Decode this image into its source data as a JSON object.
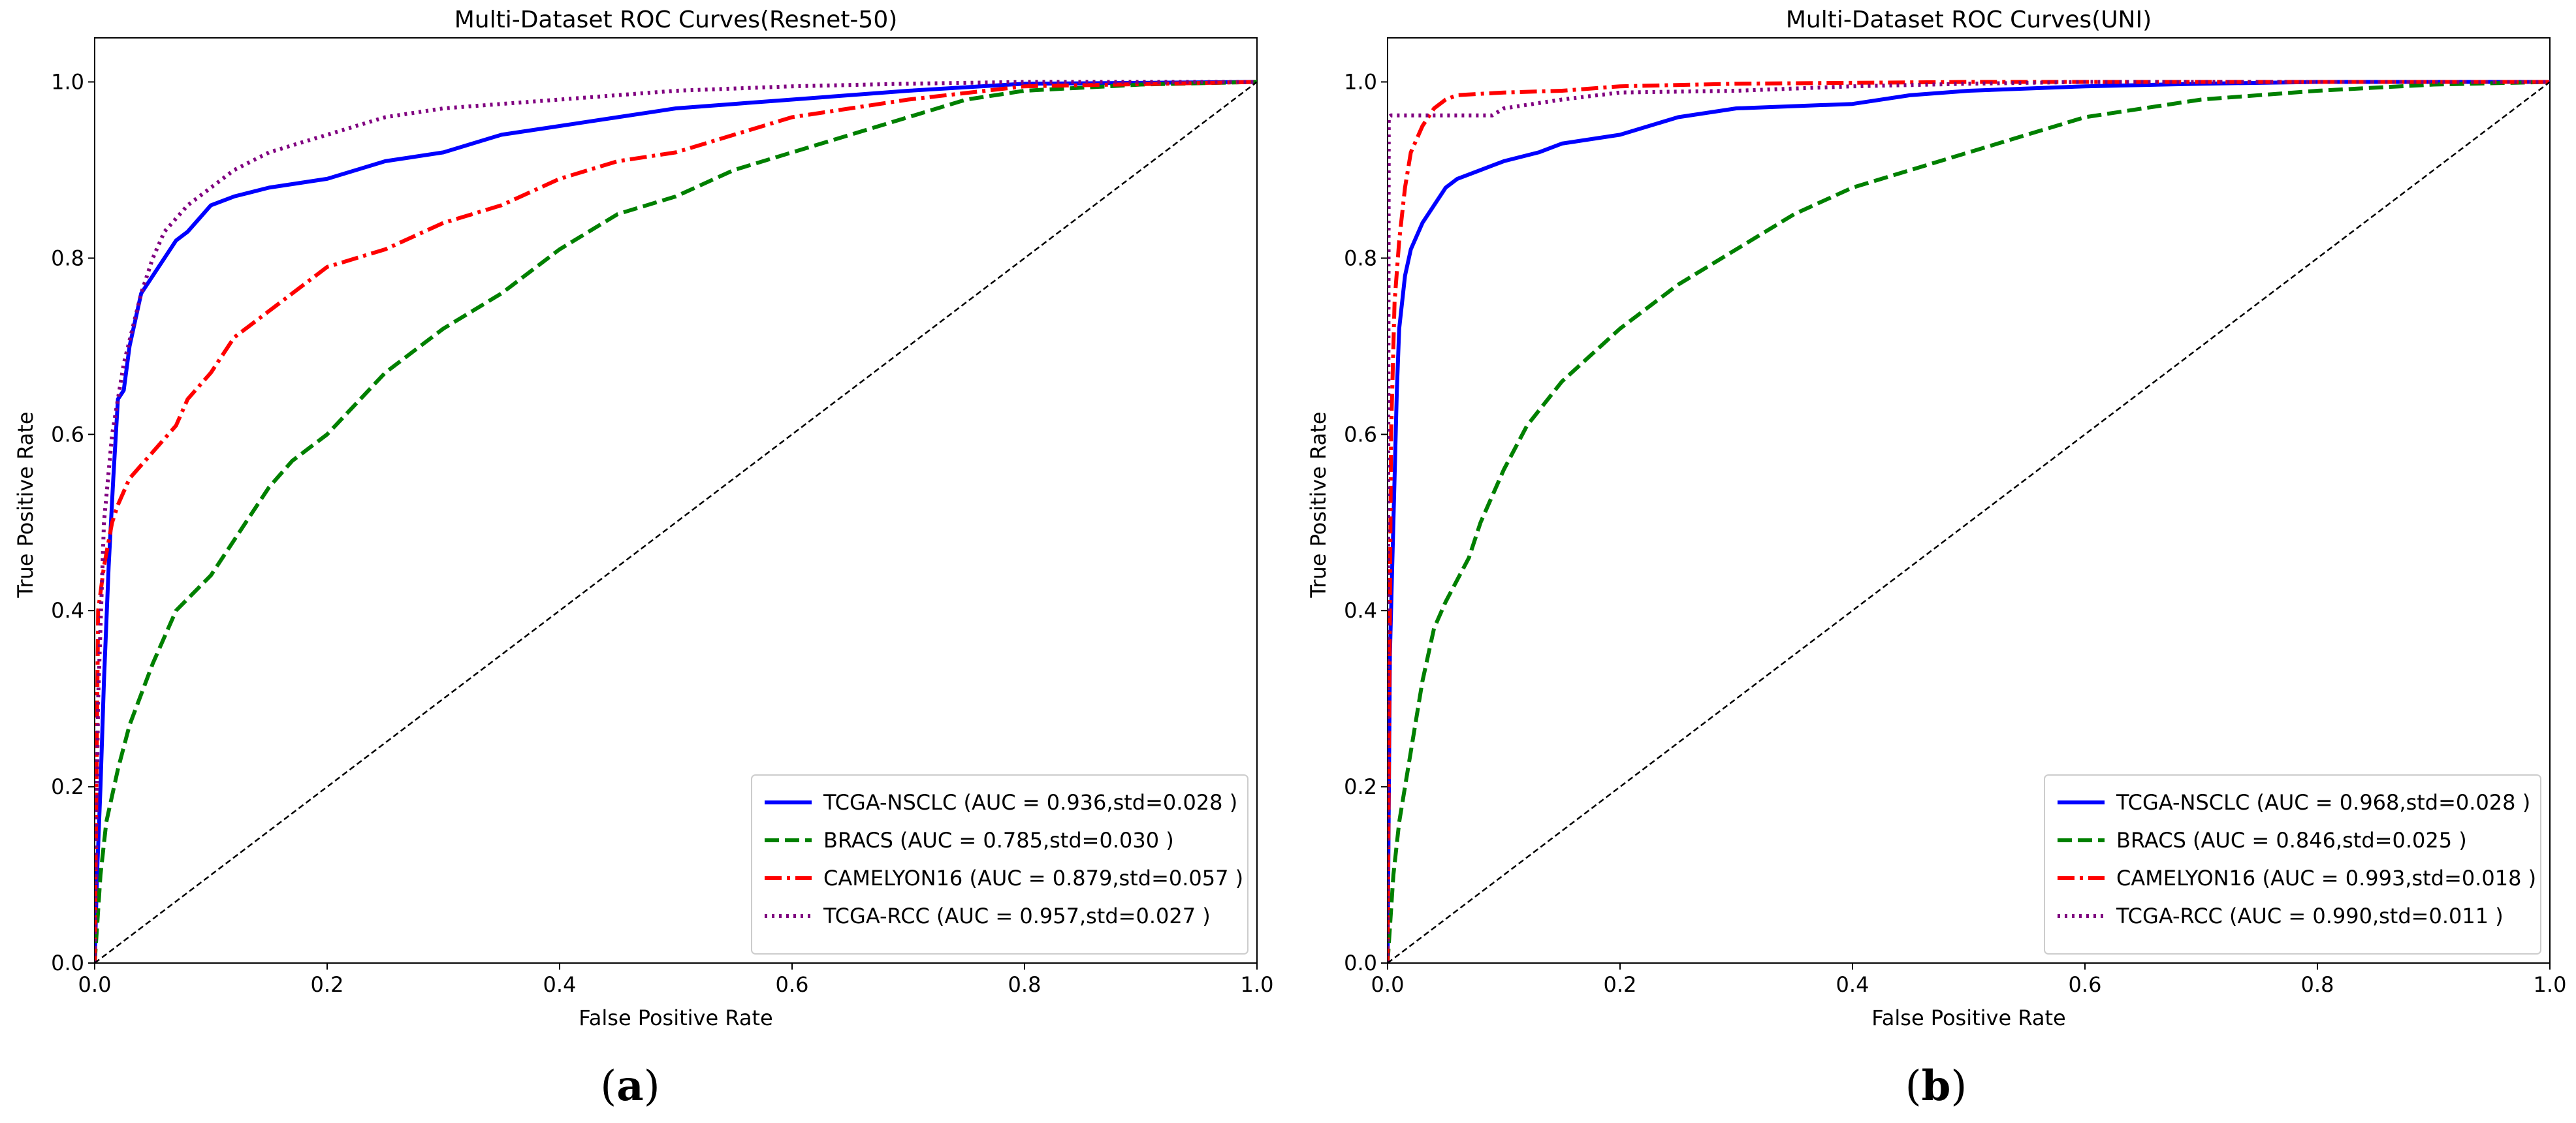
{
  "chart_data": [
    {
      "type": "line",
      "title": "Multi-Dataset ROC Curves(Resnet-50)",
      "xlabel": "False Positive Rate",
      "ylabel": "True Positive Rate",
      "xlim": [
        0,
        1.0
      ],
      "ylim": [
        0,
        1.05
      ],
      "xticks": [
        "0.0",
        "0.2",
        "0.4",
        "0.6",
        "0.8",
        "1.0"
      ],
      "yticks": [
        "0.0",
        "0.2",
        "0.4",
        "0.6",
        "0.8",
        "1.0"
      ],
      "legend_position": "lower-right",
      "caption_letter": "a",
      "series": [
        {
          "name": "TCGA-NSCLC",
          "legend": "TCGA-NSCLC (AUC = 0.936,std=0.028 )",
          "color": "#0000ff",
          "style": "solid",
          "x": [
            0,
            0.002,
            0.005,
            0.008,
            0.012,
            0.016,
            0.02,
            0.025,
            0.03,
            0.035,
            0.04,
            0.05,
            0.06,
            0.07,
            0.08,
            0.1,
            0.12,
            0.15,
            0.2,
            0.25,
            0.3,
            0.35,
            0.4,
            0.45,
            0.5,
            0.55,
            0.6,
            0.7,
            0.8,
            1.0
          ],
          "y": [
            0,
            0.1,
            0.2,
            0.32,
            0.45,
            0.55,
            0.64,
            0.65,
            0.7,
            0.73,
            0.76,
            0.78,
            0.8,
            0.82,
            0.83,
            0.86,
            0.87,
            0.88,
            0.89,
            0.91,
            0.92,
            0.94,
            0.95,
            0.96,
            0.97,
            0.975,
            0.98,
            0.99,
            0.998,
            1.0
          ]
        },
        {
          "name": "BRACS",
          "legend": "BRACS (AUC = 0.785,std=0.030 )",
          "color": "#008000",
          "style": "dashed",
          "x": [
            0,
            0.005,
            0.01,
            0.02,
            0.03,
            0.05,
            0.07,
            0.1,
            0.13,
            0.15,
            0.17,
            0.2,
            0.25,
            0.3,
            0.35,
            0.4,
            0.45,
            0.5,
            0.55,
            0.6,
            0.65,
            0.7,
            0.75,
            0.8,
            0.9,
            1.0
          ],
          "y": [
            0,
            0.1,
            0.16,
            0.22,
            0.27,
            0.34,
            0.4,
            0.44,
            0.5,
            0.54,
            0.57,
            0.6,
            0.67,
            0.72,
            0.76,
            0.81,
            0.85,
            0.87,
            0.9,
            0.92,
            0.94,
            0.96,
            0.98,
            0.99,
            0.997,
            1.0
          ]
        },
        {
          "name": "CAMELYON16",
          "legend": "CAMELYON16 (AUC = 0.879,std=0.057 )",
          "color": "#ff0000",
          "style": "dashdot",
          "x": [
            0,
            0.003,
            0.008,
            0.015,
            0.02,
            0.03,
            0.05,
            0.07,
            0.08,
            0.1,
            0.12,
            0.15,
            0.18,
            0.2,
            0.25,
            0.3,
            0.35,
            0.4,
            0.45,
            0.5,
            0.55,
            0.6,
            0.65,
            0.7,
            0.8,
            1.0
          ],
          "y": [
            0,
            0.4,
            0.45,
            0.5,
            0.52,
            0.55,
            0.58,
            0.61,
            0.64,
            0.67,
            0.71,
            0.74,
            0.77,
            0.79,
            0.81,
            0.84,
            0.86,
            0.89,
            0.91,
            0.92,
            0.94,
            0.96,
            0.97,
            0.98,
            0.995,
            1.0
          ]
        },
        {
          "name": "TCGA-RCC",
          "legend": "TCGA-RCC (AUC = 0.957,std=0.027 )",
          "color": "#800080",
          "style": "dotted",
          "x": [
            0,
            0.003,
            0.008,
            0.015,
            0.025,
            0.04,
            0.05,
            0.06,
            0.08,
            0.1,
            0.12,
            0.15,
            0.2,
            0.25,
            0.3,
            0.35,
            0.4,
            0.5,
            0.6,
            0.7,
            0.8,
            1.0
          ],
          "y": [
            0,
            0.3,
            0.5,
            0.6,
            0.68,
            0.76,
            0.8,
            0.83,
            0.86,
            0.88,
            0.9,
            0.92,
            0.94,
            0.96,
            0.97,
            0.975,
            0.98,
            0.99,
            0.995,
            0.998,
            1.0,
            1.0
          ]
        },
        {
          "name": "Chance",
          "legend": "",
          "color": "#000000",
          "style": "dashed-thin",
          "x": [
            0,
            1.0
          ],
          "y": [
            0,
            1.0
          ]
        }
      ]
    },
    {
      "type": "line",
      "title": "Multi-Dataset ROC Curves(UNI)",
      "xlabel": "False Positive Rate",
      "ylabel": "True Positive Rate",
      "xlim": [
        0,
        1.0
      ],
      "ylim": [
        0,
        1.05
      ],
      "xticks": [
        "0.0",
        "0.2",
        "0.4",
        "0.6",
        "0.8",
        "1.0"
      ],
      "yticks": [
        "0.0",
        "0.2",
        "0.4",
        "0.6",
        "0.8",
        "1.0"
      ],
      "legend_position": "lower-right",
      "caption_letter": "b",
      "series": [
        {
          "name": "TCGA-NSCLC",
          "legend": "TCGA-NSCLC (AUC = 0.968,std=0.028 )",
          "color": "#0000ff",
          "style": "solid",
          "x": [
            0,
            0.002,
            0.004,
            0.006,
            0.008,
            0.01,
            0.015,
            0.02,
            0.03,
            0.04,
            0.05,
            0.06,
            0.08,
            0.1,
            0.13,
            0.15,
            0.2,
            0.25,
            0.3,
            0.4,
            0.45,
            0.5,
            0.6,
            0.7,
            0.8,
            1.0
          ],
          "y": [
            0,
            0.35,
            0.45,
            0.55,
            0.65,
            0.72,
            0.78,
            0.81,
            0.84,
            0.86,
            0.88,
            0.89,
            0.9,
            0.91,
            0.92,
            0.93,
            0.94,
            0.96,
            0.97,
            0.975,
            0.985,
            0.99,
            0.995,
            0.998,
            1.0,
            1.0
          ]
        },
        {
          "name": "BRACS",
          "legend": "BRACS (AUC = 0.846,std=0.025 )",
          "color": "#008000",
          "style": "dashed",
          "x": [
            0,
            0.005,
            0.01,
            0.02,
            0.03,
            0.04,
            0.05,
            0.07,
            0.08,
            0.1,
            0.12,
            0.15,
            0.2,
            0.25,
            0.3,
            0.35,
            0.4,
            0.45,
            0.5,
            0.55,
            0.6,
            0.65,
            0.7,
            0.8,
            0.9,
            1.0
          ],
          "y": [
            0,
            0.1,
            0.16,
            0.24,
            0.32,
            0.38,
            0.41,
            0.46,
            0.5,
            0.56,
            0.61,
            0.66,
            0.72,
            0.77,
            0.81,
            0.85,
            0.88,
            0.9,
            0.92,
            0.94,
            0.96,
            0.97,
            0.98,
            0.99,
            0.997,
            1.0
          ]
        },
        {
          "name": "CAMELYON16",
          "legend": "CAMELYON16 (AUC = 0.993,std=0.018 )",
          "color": "#ff0000",
          "style": "dashdot",
          "x": [
            0,
            0.003,
            0.006,
            0.01,
            0.015,
            0.02,
            0.03,
            0.04,
            0.05,
            0.06,
            0.1,
            0.15,
            0.2,
            0.3,
            0.5,
            1.0
          ],
          "y": [
            0,
            0.6,
            0.75,
            0.82,
            0.88,
            0.92,
            0.95,
            0.97,
            0.98,
            0.985,
            0.988,
            0.99,
            0.995,
            0.998,
            1.0,
            1.0
          ]
        },
        {
          "name": "TCGA-RCC",
          "legend": "TCGA-RCC (AUC = 0.990,std=0.011 )",
          "color": "#800080",
          "style": "dotted",
          "x": [
            0,
            0.001,
            0.003,
            0.05,
            0.09,
            0.1,
            0.15,
            0.2,
            0.3,
            0.4,
            0.5,
            0.6,
            1.0
          ],
          "y": [
            0,
            0.96,
            0.962,
            0.962,
            0.962,
            0.97,
            0.98,
            0.988,
            0.99,
            0.995,
            0.998,
            1.0,
            1.0
          ]
        },
        {
          "name": "Chance",
          "legend": "",
          "color": "#000000",
          "style": "dashed-thin",
          "x": [
            0,
            1.0
          ],
          "y": [
            0,
            1.0
          ]
        }
      ]
    }
  ]
}
